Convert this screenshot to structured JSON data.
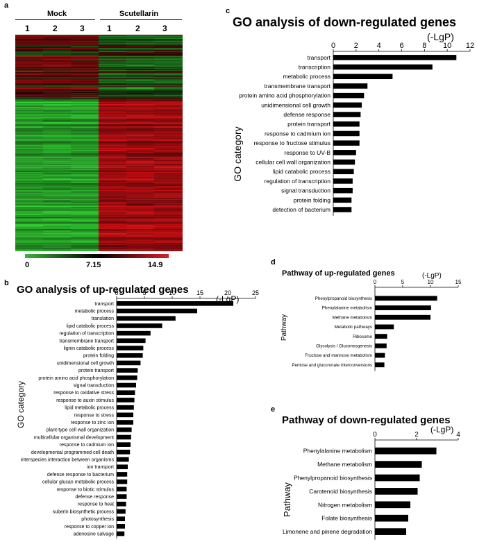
{
  "heatmap": {
    "letter": "a",
    "groups": [
      "Mock",
      "Scutellarin"
    ],
    "columns": [
      "1",
      "2",
      "3",
      "1",
      "2",
      "3"
    ],
    "colorbar": {
      "min": "0",
      "mid": "7.15",
      "max": "14.9",
      "low_color": "#3cb43c",
      "mid_color": "#000000",
      "high_color": "#d8202a"
    }
  },
  "charts": {
    "b": {
      "letter": "b",
      "chart_data": {
        "type": "bar",
        "orientation": "horizontal",
        "title": "GO analysis of up-regulated genes",
        "xlabel": "(-LgP)",
        "ylabel": "GO category",
        "xlim": [
          0,
          25
        ],
        "ticks": [
          0,
          5,
          10,
          15,
          20,
          25
        ],
        "categories": [
          "transport",
          "metabolic process",
          "translation",
          "lipid catabolic process",
          "regulation of transcription",
          "transmembrane transport",
          "lignin catabolic process",
          "protein folding",
          "unidimensional cell growth",
          "protein transport",
          "protein amino acid phosphorylation",
          "signal transduction",
          "response to oxidative stress",
          "response to auxin stimulus",
          "lipid metabolic process",
          "response to stress",
          "response to zinc ion",
          "plant-type cell wall organization",
          "multicellular organismal development",
          "response to cadmium ion",
          "developmental programmed cell death",
          "interspecies interaction between organisms",
          "ion transport",
          "defense response to bacterium",
          "cellular glucan metabolic process",
          "response to biotic stimulus",
          "defense response",
          "response to heat",
          "suberin biosynthetic process",
          "photosynthesis",
          "response to copper ion",
          "adenosine salvage"
        ],
        "values": [
          21.0,
          14.5,
          10.6,
          8.2,
          6.1,
          5.2,
          4.8,
          4.7,
          4.3,
          3.8,
          3.7,
          3.5,
          3.3,
          3.2,
          3.1,
          3.0,
          3.0,
          2.7,
          2.6,
          2.5,
          2.4,
          2.2,
          2.0,
          1.9,
          1.9,
          1.8,
          1.8,
          1.7,
          1.6,
          1.5,
          1.5,
          1.4
        ]
      }
    },
    "c": {
      "letter": "c",
      "chart_data": {
        "type": "bar",
        "orientation": "horizontal",
        "title": "GO analysis of down-regulated genes",
        "xlabel": "(-LgP)",
        "ylabel": "GO category",
        "xlim": [
          0,
          12
        ],
        "ticks": [
          0,
          2,
          4,
          6,
          8,
          10,
          12
        ],
        "categories": [
          "transport",
          "transcription",
          "metabolic process",
          "transmembrane transport",
          "protein amino acid phosphorylation",
          "unidimensional cell growth",
          "defense response",
          "protein transport",
          "response to cadmium ion",
          "response to fructose stimulus",
          "response to UV-B",
          "cellular cell wall organization",
          "lipid catabolic process",
          "regulation of transcription",
          "signal transduction",
          "protein folding",
          "detection of bacterium"
        ],
        "values": [
          10.8,
          8.7,
          5.2,
          3.0,
          2.7,
          2.5,
          2.4,
          2.3,
          2.3,
          2.3,
          2.0,
          1.9,
          1.8,
          1.7,
          1.7,
          1.6,
          1.6
        ]
      }
    },
    "d": {
      "letter": "d",
      "chart_data": {
        "type": "bar",
        "orientation": "horizontal",
        "title": "Pathway of up-regulated genes",
        "xlabel": "(-LgP)",
        "ylabel": "Pathway",
        "xlim": [
          0,
          15
        ],
        "ticks": [
          0,
          5,
          10,
          15
        ],
        "categories": [
          "Phenylpropanoid biosynthesis",
          "Phenylalanine metabolism",
          "Methane metabolism",
          "Metabolic pathways",
          "Ribosome",
          "Glycolysis / Gluconeogenesis",
          "Fructose and mannose metabolism",
          "Pentose and glucuronate interconversions"
        ],
        "values": [
          11.2,
          10.1,
          10.0,
          3.4,
          2.2,
          2.1,
          1.8,
          1.7
        ]
      }
    },
    "e": {
      "letter": "e",
      "chart_data": {
        "type": "bar",
        "orientation": "horizontal",
        "title": "Pathway of down-regulated genes",
        "xlabel": "(-LgP)",
        "ylabel": "Pathway",
        "xlim": [
          0,
          4
        ],
        "ticks": [
          0,
          2,
          4
        ],
        "categories": [
          "Phenylalanine metabolism",
          "Methane metabolism",
          "Phenylpropanoid biosynthesis",
          "Carotenoid biosynthesis",
          "Nitrogen metabolism",
          "Folate biosynthesis",
          "Limonene and pinene degradation"
        ],
        "values": [
          2.95,
          2.25,
          2.15,
          2.05,
          1.7,
          1.6,
          1.5
        ]
      }
    }
  }
}
